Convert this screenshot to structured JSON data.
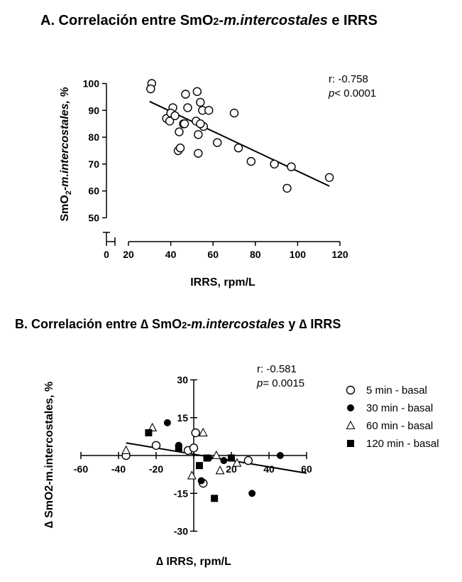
{
  "panel_a": {
    "title_pre": "A. Correlación entre SmO",
    "title_sub": "2",
    "title_italic": "-m.intercostales",
    "title_post": " e IRRS",
    "ylabel_pre": "SmO",
    "ylabel_sub": "2",
    "ylabel_post": "-m.intercostales, %",
    "xlabel": "IRRS, rpm/L",
    "stat_r": "r: -0.758",
    "stat_p_label": "p",
    "stat_p_value": "< 0.0001"
  },
  "panel_b": {
    "title_pre": "B. Correlación entre ∆ SmO",
    "title_sub": "2",
    "title_italic": "-m.intercostales",
    "title_mid": " y ",
    "title_post": "∆ IRRS",
    "ylabel": "∆ SmO2-m.intercostales, %",
    "xlabel": "∆ IRRS, rpm/L",
    "stat_r": "r: -0.581",
    "stat_p_label": "p",
    "stat_p_value": "= 0.0015",
    "legend": [
      "5 min - basal",
      "30 min - basal",
      "60 min - basal",
      "120 min - basal"
    ]
  },
  "chart_data": [
    {
      "type": "scatter",
      "title": "A. Correlación entre SmO2-m.intercostales e IRRS",
      "xlabel": "IRRS, rpm/L",
      "ylabel": "SmO2-m.intercostales, %",
      "xlim": [
        20,
        120
      ],
      "ylim": [
        50,
        100
      ],
      "x_ticks": [
        "0",
        "20",
        "40",
        "60",
        "80",
        "100",
        "120"
      ],
      "y_ticks": [
        "50",
        "60",
        "70",
        "80",
        "90",
        "100"
      ],
      "x": [
        31,
        30.5,
        38,
        39.5,
        41,
        40,
        42,
        44,
        43.5,
        44.5,
        46,
        46.5,
        47,
        48,
        52.5,
        52,
        53,
        54,
        55,
        55.5,
        58,
        53,
        62,
        70,
        72,
        78,
        89,
        95,
        97,
        115,
        54
      ],
      "y": [
        100,
        98,
        87,
        86,
        91,
        89,
        88,
        82,
        75,
        76,
        85,
        85,
        96,
        91,
        97,
        86,
        81,
        93,
        90,
        84,
        90,
        74,
        78,
        89,
        76,
        71,
        70,
        61,
        69,
        65,
        85
      ],
      "fit_line": {
        "x": [
          30,
          115
        ],
        "y": [
          93.3,
          61.8
        ]
      },
      "annotation": [
        "r: -0.758",
        "p< 0.0001"
      ]
    },
    {
      "type": "scatter",
      "title": "B. Correlación entre ∆ SmO2-m.intercostales y ∆ IRRS",
      "xlabel": "∆ IRRS, rpm/L",
      "ylabel": "∆ SmO2-m.intercostales, %",
      "xlim": [
        -60,
        60
      ],
      "ylim": [
        -30,
        30
      ],
      "x_ticks": [
        "-60",
        "-40",
        "-20",
        "0",
        "20",
        "40",
        "60"
      ],
      "y_ticks": [
        "-30",
        "-15",
        "15",
        "30"
      ],
      "series": [
        {
          "name": "5 min - basal",
          "marker": "circle-open",
          "x": [
            -36,
            -20,
            -3,
            0,
            1,
            5,
            29
          ],
          "y": [
            0,
            4,
            2,
            3,
            9,
            -11,
            -2
          ]
        },
        {
          "name": "30 min - basal",
          "marker": "circle-filled",
          "x": [
            -14,
            -8,
            4,
            8,
            16,
            31,
            46
          ],
          "y": [
            13,
            4,
            -10,
            -1,
            -2,
            -15,
            0
          ]
        },
        {
          "name": "60 min - basal",
          "marker": "triangle-open",
          "x": [
            -36,
            -22,
            -1,
            5,
            12,
            14,
            23
          ],
          "y": [
            2,
            11,
            -8,
            9,
            0,
            -6,
            -3
          ]
        },
        {
          "name": "120 min - basal",
          "marker": "square-filled",
          "x": [
            -24,
            -8,
            3,
            7,
            11,
            20
          ],
          "y": [
            9,
            3,
            -4,
            -1,
            -17,
            -1
          ]
        }
      ],
      "fit_line": {
        "x": [
          -36,
          60
        ],
        "y": [
          5,
          -7
        ]
      },
      "annotation": [
        "r: -0.581",
        "p= 0.0015"
      ],
      "legend_position": "top-right"
    }
  ]
}
